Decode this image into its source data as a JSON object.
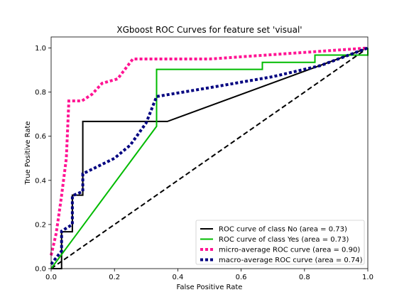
{
  "chart_data": {
    "type": "line",
    "title": "XGboost ROC Curves for feature set 'visual'",
    "xlabel": "False Positive Rate",
    "ylabel": "True Positive Rate",
    "xlim": [
      0.0,
      1.0
    ],
    "ylim": [
      0.0,
      1.05
    ],
    "x_ticks": [
      0.0,
      0.2,
      0.4,
      0.6,
      0.8,
      1.0
    ],
    "x_tick_labels": [
      "0.0",
      "0.2",
      "0.4",
      "0.6",
      "0.8",
      "1.0"
    ],
    "y_ticks": [
      0.0,
      0.2,
      0.4,
      0.6,
      0.8,
      1.0
    ],
    "y_tick_labels": [
      "0.0",
      "0.2",
      "0.4",
      "0.6",
      "0.8",
      "1.0"
    ],
    "grid": false,
    "legend_position": "lower-right",
    "series": [
      {
        "name": "ROC curve of class No (area = 0.73)",
        "color": "#000000",
        "style": "solid",
        "x": [
          0.0,
          0.033,
          0.033,
          0.067,
          0.067,
          0.1,
          0.1,
          0.367,
          1.0
        ],
        "y": [
          0.0,
          0.0,
          0.167,
          0.167,
          0.333,
          0.333,
          0.667,
          0.667,
          1.0
        ]
      },
      {
        "name": "ROC curve of class Yes (area = 0.73)",
        "color": "#00bb00",
        "style": "solid",
        "x": [
          0.0,
          0.333,
          0.333,
          0.667,
          0.667,
          0.833,
          0.833,
          1.0,
          1.0
        ],
        "y": [
          0.0,
          0.645,
          0.903,
          0.903,
          0.935,
          0.935,
          0.968,
          0.968,
          1.0
        ]
      },
      {
        "name": "micro-average ROC curve (area = 0.90)",
        "color": "#ff1493",
        "style": "dotted",
        "x": [
          0.0,
          0.016,
          0.032,
          0.048,
          0.056,
          0.065,
          0.097,
          0.129,
          0.161,
          0.21,
          0.226,
          0.242,
          0.258,
          0.5,
          0.7,
          0.85,
          1.0
        ],
        "y": [
          0.06,
          0.16,
          0.32,
          0.5,
          0.76,
          0.76,
          0.76,
          0.79,
          0.84,
          0.86,
          0.89,
          0.92,
          0.95,
          0.95,
          0.97,
          0.985,
          1.0
        ]
      },
      {
        "name": "macro-average ROC curve (area = 0.74)",
        "color": "#000080",
        "style": "dotted",
        "x": [
          0.0,
          0.033,
          0.033,
          0.067,
          0.067,
          0.1,
          0.1,
          0.2,
          0.25,
          0.3,
          0.333,
          0.333,
          0.5,
          0.7,
          0.85,
          1.0
        ],
        "y": [
          0.02,
          0.08,
          0.17,
          0.2,
          0.33,
          0.35,
          0.43,
          0.5,
          0.56,
          0.66,
          0.78,
          0.78,
          0.82,
          0.87,
          0.92,
          1.0
        ]
      },
      {
        "name": "",
        "color": "#000000",
        "style": "dashed",
        "x": [
          0.0,
          1.0
        ],
        "y": [
          0.0,
          1.0
        ]
      }
    ]
  }
}
